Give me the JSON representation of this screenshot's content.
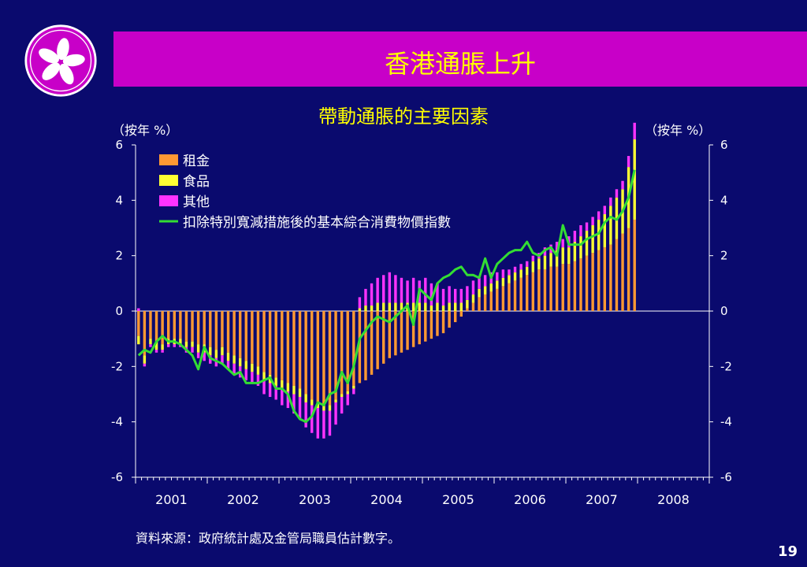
{
  "title": "香港通脹上升",
  "chart_data": {
    "type": "bar",
    "title": "帶動通脹的主要因素",
    "ylabel_left": "（按年 %）",
    "ylabel_right": "（按年 %）",
    "ylim": [
      -6,
      6
    ],
    "yticks": [
      6,
      4,
      2,
      0,
      -2,
      -4,
      -6
    ],
    "xticks": [
      "2001",
      "2002",
      "2003",
      "2004",
      "2005",
      "2006",
      "2007",
      "2008"
    ],
    "legend_position": "top-left",
    "stacked": true,
    "months_start": "2001-01",
    "months_end": "2007-10",
    "series": [
      {
        "name": "租金",
        "kind": "bar",
        "color": "#ff9933",
        "values": [
          -0.9,
          -1.6,
          -1.0,
          -1.1,
          -1.2,
          -1.0,
          -1.0,
          -1.0,
          -1.1,
          -1.1,
          -1.2,
          -1.2,
          -1.3,
          -1.4,
          -1.3,
          -1.5,
          -1.6,
          -1.7,
          -1.8,
          -1.9,
          -2.0,
          -2.2,
          -2.3,
          -2.4,
          -2.5,
          -2.6,
          -2.7,
          -2.8,
          -3.0,
          -3.2,
          -3.3,
          -3.4,
          -3.4,
          -3.2,
          -3.0,
          -2.9,
          -2.7,
          -2.6,
          -2.5,
          -2.3,
          -2.1,
          -1.9,
          -1.7,
          -1.6,
          -1.5,
          -1.4,
          -1.3,
          -1.2,
          -1.1,
          -1.0,
          -0.9,
          -0.8,
          -0.6,
          -0.4,
          -0.2,
          0.1,
          0.3,
          0.5,
          0.6,
          0.7,
          0.8,
          0.9,
          1.0,
          1.1,
          1.2,
          1.3,
          1.4,
          1.5,
          1.5,
          1.6,
          1.6,
          1.7,
          1.7,
          1.8,
          1.9,
          2.0,
          2.1,
          2.2,
          2.3,
          2.4,
          2.6,
          2.8,
          3.0,
          3.3
        ]
      },
      {
        "name": "食品",
        "kind": "bar",
        "color": "#ffff33",
        "values": [
          -0.3,
          -0.3,
          -0.2,
          -0.3,
          -0.2,
          -0.2,
          -0.2,
          -0.2,
          -0.2,
          -0.2,
          -0.3,
          -0.3,
          -0.3,
          -0.3,
          -0.3,
          -0.3,
          -0.3,
          -0.3,
          -0.3,
          -0.3,
          -0.3,
          -0.3,
          -0.3,
          -0.3,
          -0.3,
          -0.3,
          -0.3,
          -0.3,
          -0.3,
          -0.2,
          -0.2,
          -0.2,
          -0.2,
          -0.1,
          -0.1,
          -0.1,
          -0.1,
          0.1,
          0.2,
          0.2,
          0.3,
          0.3,
          0.3,
          0.3,
          0.3,
          0.3,
          0.3,
          0.3,
          0.3,
          0.2,
          0.3,
          0.2,
          0.3,
          0.3,
          0.3,
          0.3,
          0.3,
          0.3,
          0.3,
          0.3,
          0.3,
          0.3,
          0.3,
          0.3,
          0.3,
          0.3,
          0.4,
          0.4,
          0.5,
          0.5,
          0.6,
          0.6,
          0.6,
          0.7,
          0.8,
          0.9,
          1.0,
          1.1,
          1.2,
          1.4,
          1.5,
          1.6,
          2.2,
          2.9
        ]
      },
      {
        "name": "其他",
        "kind": "bar",
        "color": "#ff33ff",
        "values": [
          0.1,
          -0.1,
          -0.1,
          -0.1,
          -0.1,
          -0.1,
          -0.1,
          -0.1,
          -0.2,
          -0.2,
          -0.2,
          -0.3,
          -0.3,
          -0.3,
          -0.3,
          -0.3,
          -0.4,
          -0.4,
          -0.4,
          -0.4,
          -0.4,
          -0.5,
          -0.5,
          -0.5,
          -0.6,
          -0.6,
          -0.7,
          -0.8,
          -0.9,
          -1.0,
          -1.1,
          -1.0,
          -0.9,
          -0.8,
          -0.6,
          -0.4,
          -0.2,
          0.4,
          0.6,
          0.8,
          0.9,
          1.0,
          1.1,
          1.0,
          0.9,
          0.8,
          0.9,
          0.8,
          0.9,
          0.8,
          0.7,
          0.6,
          0.6,
          0.5,
          0.5,
          0.5,
          0.5,
          0.4,
          0.4,
          0.4,
          0.3,
          0.3,
          0.2,
          0.2,
          0.2,
          0.2,
          0.2,
          0.2,
          0.3,
          0.3,
          0.3,
          0.3,
          0.4,
          0.4,
          0.4,
          0.3,
          0.3,
          0.3,
          0.3,
          0.3,
          0.3,
          0.3,
          0.4,
          0.6
        ]
      },
      {
        "name": "扣除特別寬減措施後的基本綜合消費物價指數",
        "kind": "line",
        "color": "#33dd33",
        "values": [
          -1.6,
          -1.4,
          -1.5,
          -1.1,
          -0.9,
          -1.1,
          -1.1,
          -1.2,
          -1.4,
          -1.6,
          -2.1,
          -1.3,
          -1.7,
          -1.8,
          -1.9,
          -2.1,
          -2.3,
          -2.2,
          -2.6,
          -2.6,
          -2.6,
          -2.5,
          -2.4,
          -2.8,
          -2.8,
          -3.0,
          -3.6,
          -3.9,
          -4.0,
          -3.8,
          -3.3,
          -3.4,
          -3.0,
          -2.9,
          -2.2,
          -2.6,
          -2.0,
          -1.0,
          -0.7,
          -0.4,
          -0.2,
          -0.3,
          -0.4,
          -0.2,
          0.0,
          0.2,
          -0.5,
          0.8,
          0.6,
          0.4,
          1.0,
          1.2,
          1.3,
          1.5,
          1.6,
          1.3,
          1.3,
          1.2,
          1.9,
          1.2,
          1.7,
          1.9,
          2.1,
          2.2,
          2.2,
          2.5,
          2.1,
          2.0,
          2.2,
          2.3,
          2.0,
          3.1,
          2.4,
          2.4,
          2.4,
          2.6,
          2.7,
          2.8,
          3.2,
          3.4,
          3.3,
          3.6,
          4.1,
          5.1
        ]
      }
    ]
  },
  "source": "資料來源：政府統計處及金管局職員估計數字。",
  "page_number": "19"
}
